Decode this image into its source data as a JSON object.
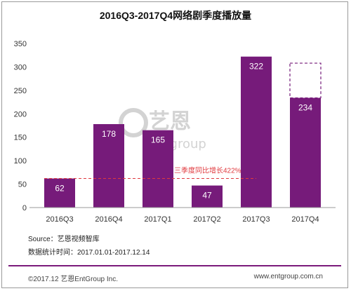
{
  "colors": {
    "bar": "#761b7a",
    "forecast_border": "#761b7a",
    "ref_line": "#e0393e",
    "annotation": "#e0393e",
    "axis": "#9a9a9a",
    "footer_rule": "#7b1a7b",
    "watermark": "#d3d3d3"
  },
  "chart_data": {
    "type": "bar",
    "title": "2016Q3-2017Q4网络剧季度播放量",
    "categories": [
      "2016Q3",
      "2016Q4",
      "2017Q1",
      "2017Q2",
      "2017Q3",
      "2017Q4"
    ],
    "values": [
      62,
      178,
      165,
      47,
      322,
      234
    ],
    "data_labels": [
      "62",
      "178",
      "165",
      "47",
      "322",
      "234"
    ],
    "forecast_outline": {
      "category": "2017Q4",
      "value": 308
    },
    "reference_line": {
      "value": 62,
      "style": "dashed"
    },
    "annotation": "三季度同比增长422%",
    "yticks": [
      "0",
      "50",
      "100",
      "150",
      "200",
      "250",
      "300",
      "350"
    ],
    "ylim": [
      0,
      350
    ],
    "xlabel": "",
    "ylabel": "",
    "grid": false
  },
  "watermark": {
    "brand": "艺恩",
    "sub": "entgroup"
  },
  "notes": {
    "source": "Source：艺恩视频智库",
    "period": "数据统计时间：2017.01.01-2017.12.14"
  },
  "footer": {
    "left": "©2017.12 艺恩EntGroup Inc.",
    "right": "www.entgroup.com.cn"
  }
}
